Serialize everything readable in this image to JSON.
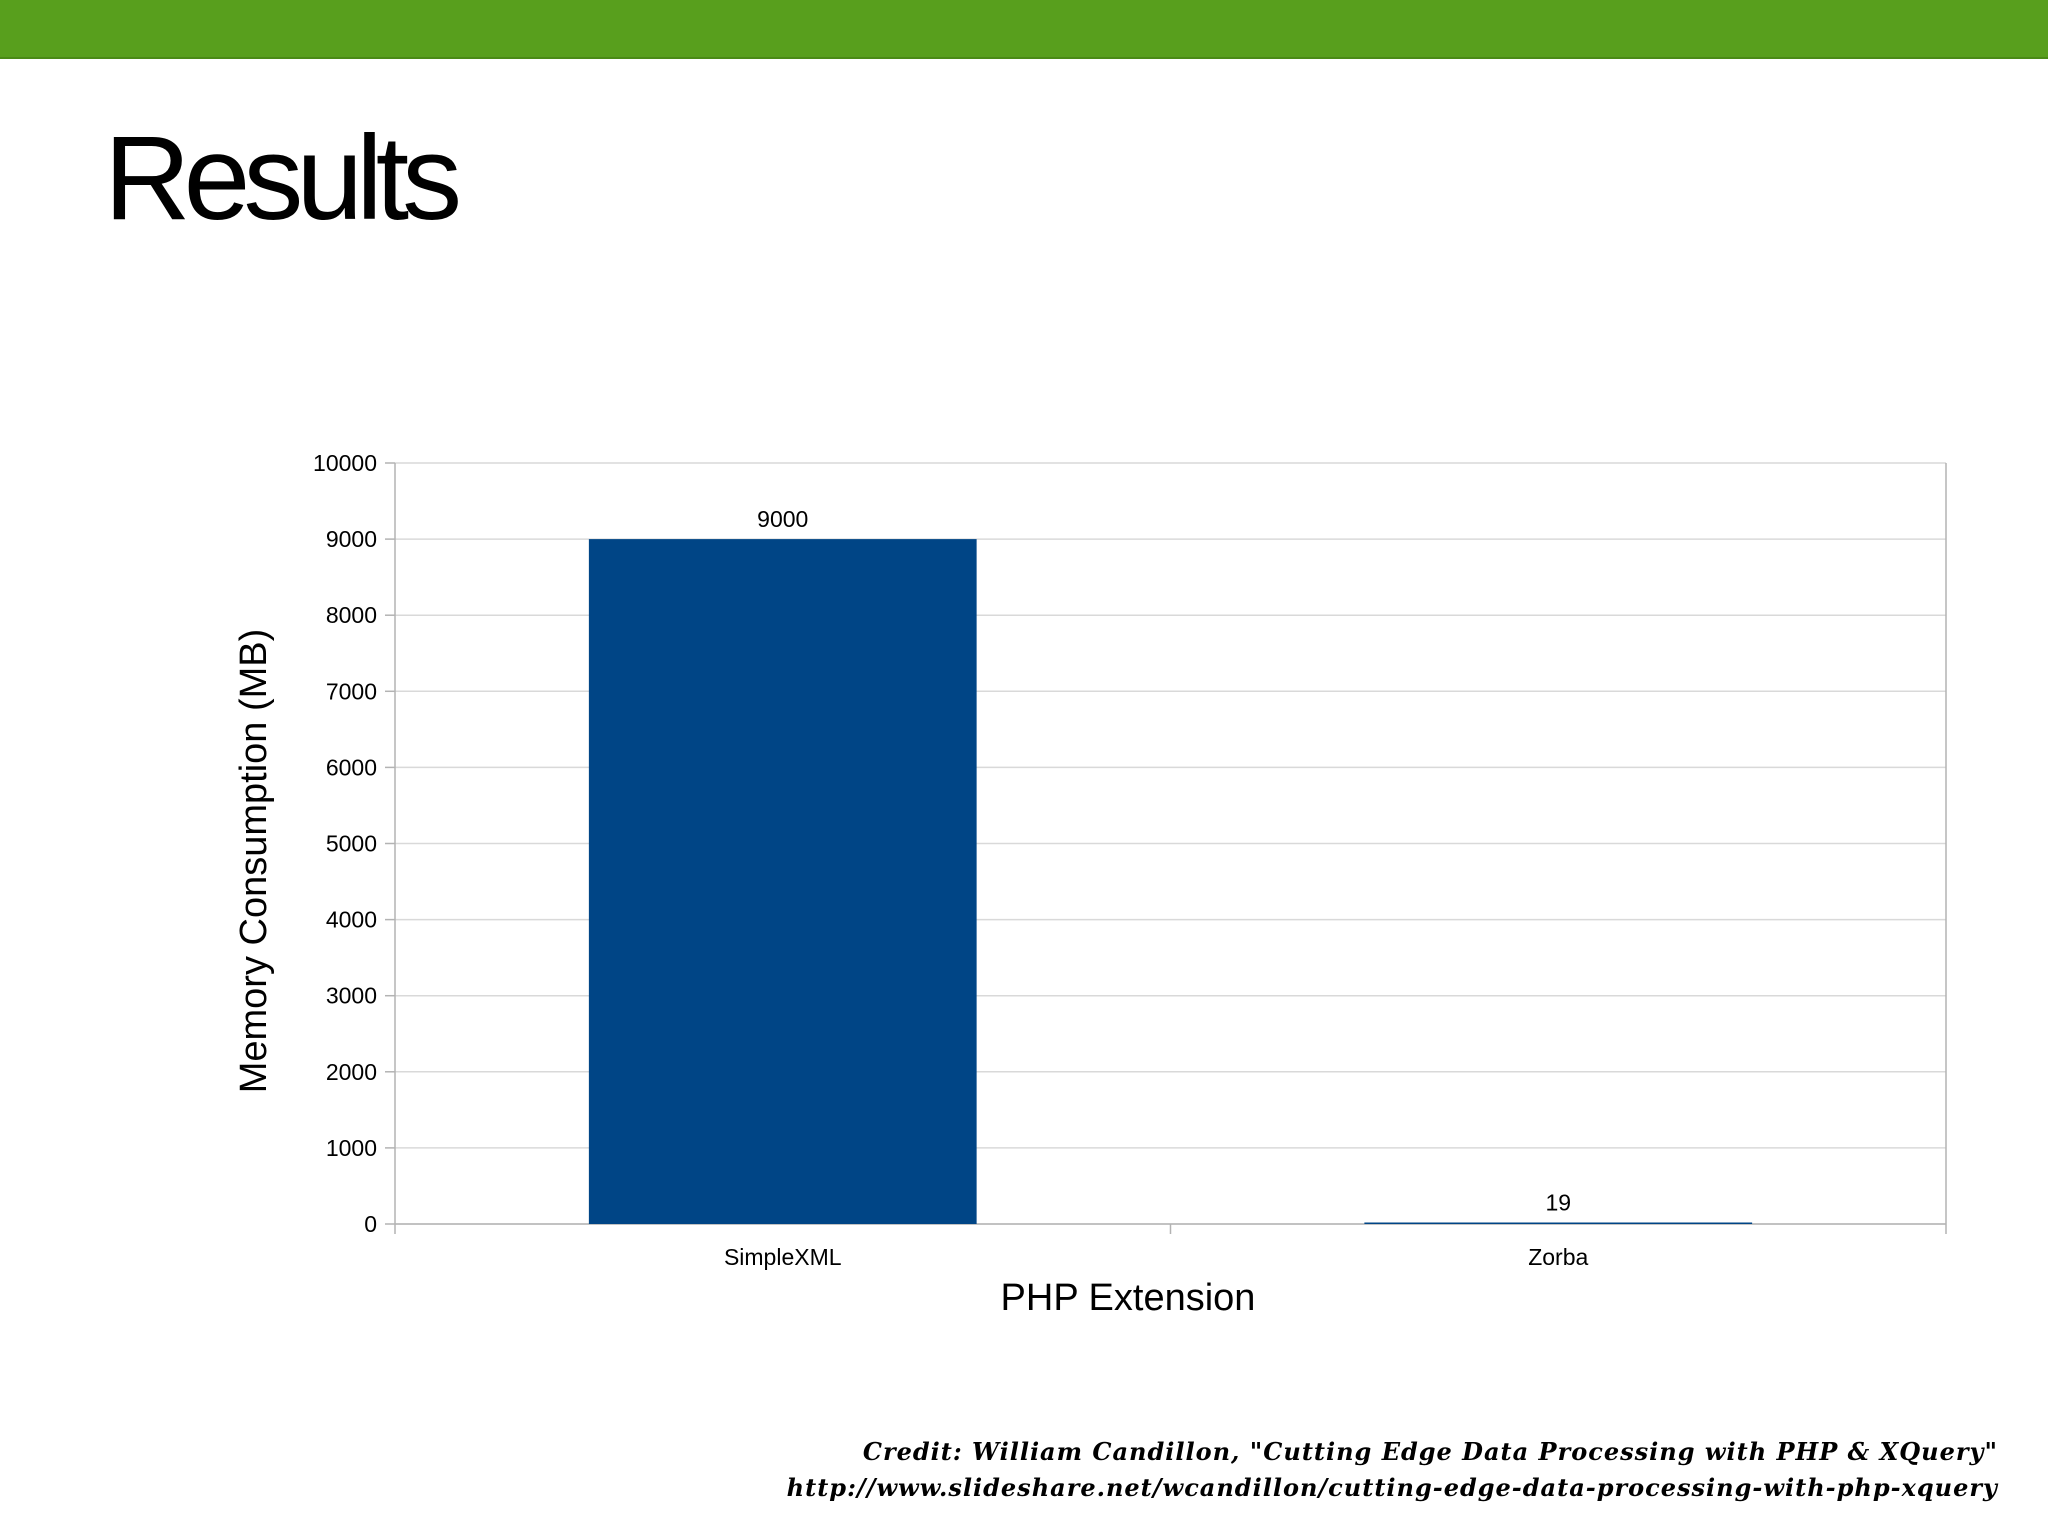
{
  "slide": {
    "title": "Results",
    "credit_line_1": "Credit: William Candillon, \"Cutting Edge Data Processing with PHP & XQuery\"",
    "credit_line_2": "http://www.slideshare.net/wcandillon/cutting-edge-data-processing-with-php-xquery",
    "accent_color": "#589f1d"
  },
  "chart_data": {
    "type": "bar",
    "categories": [
      "SimpleXML",
      "Zorba"
    ],
    "values": [
      9000,
      19
    ],
    "data_labels": [
      "9000",
      "19"
    ],
    "xlabel": "PHP Extension",
    "ylabel": "Memory Consumption (MB)",
    "ylim": [
      0,
      10000
    ],
    "yticks": [
      0,
      1000,
      2000,
      3000,
      4000,
      5000,
      6000,
      7000,
      8000,
      9000,
      10000
    ],
    "grid": true,
    "legend": "none",
    "bar_color": "#004586"
  }
}
